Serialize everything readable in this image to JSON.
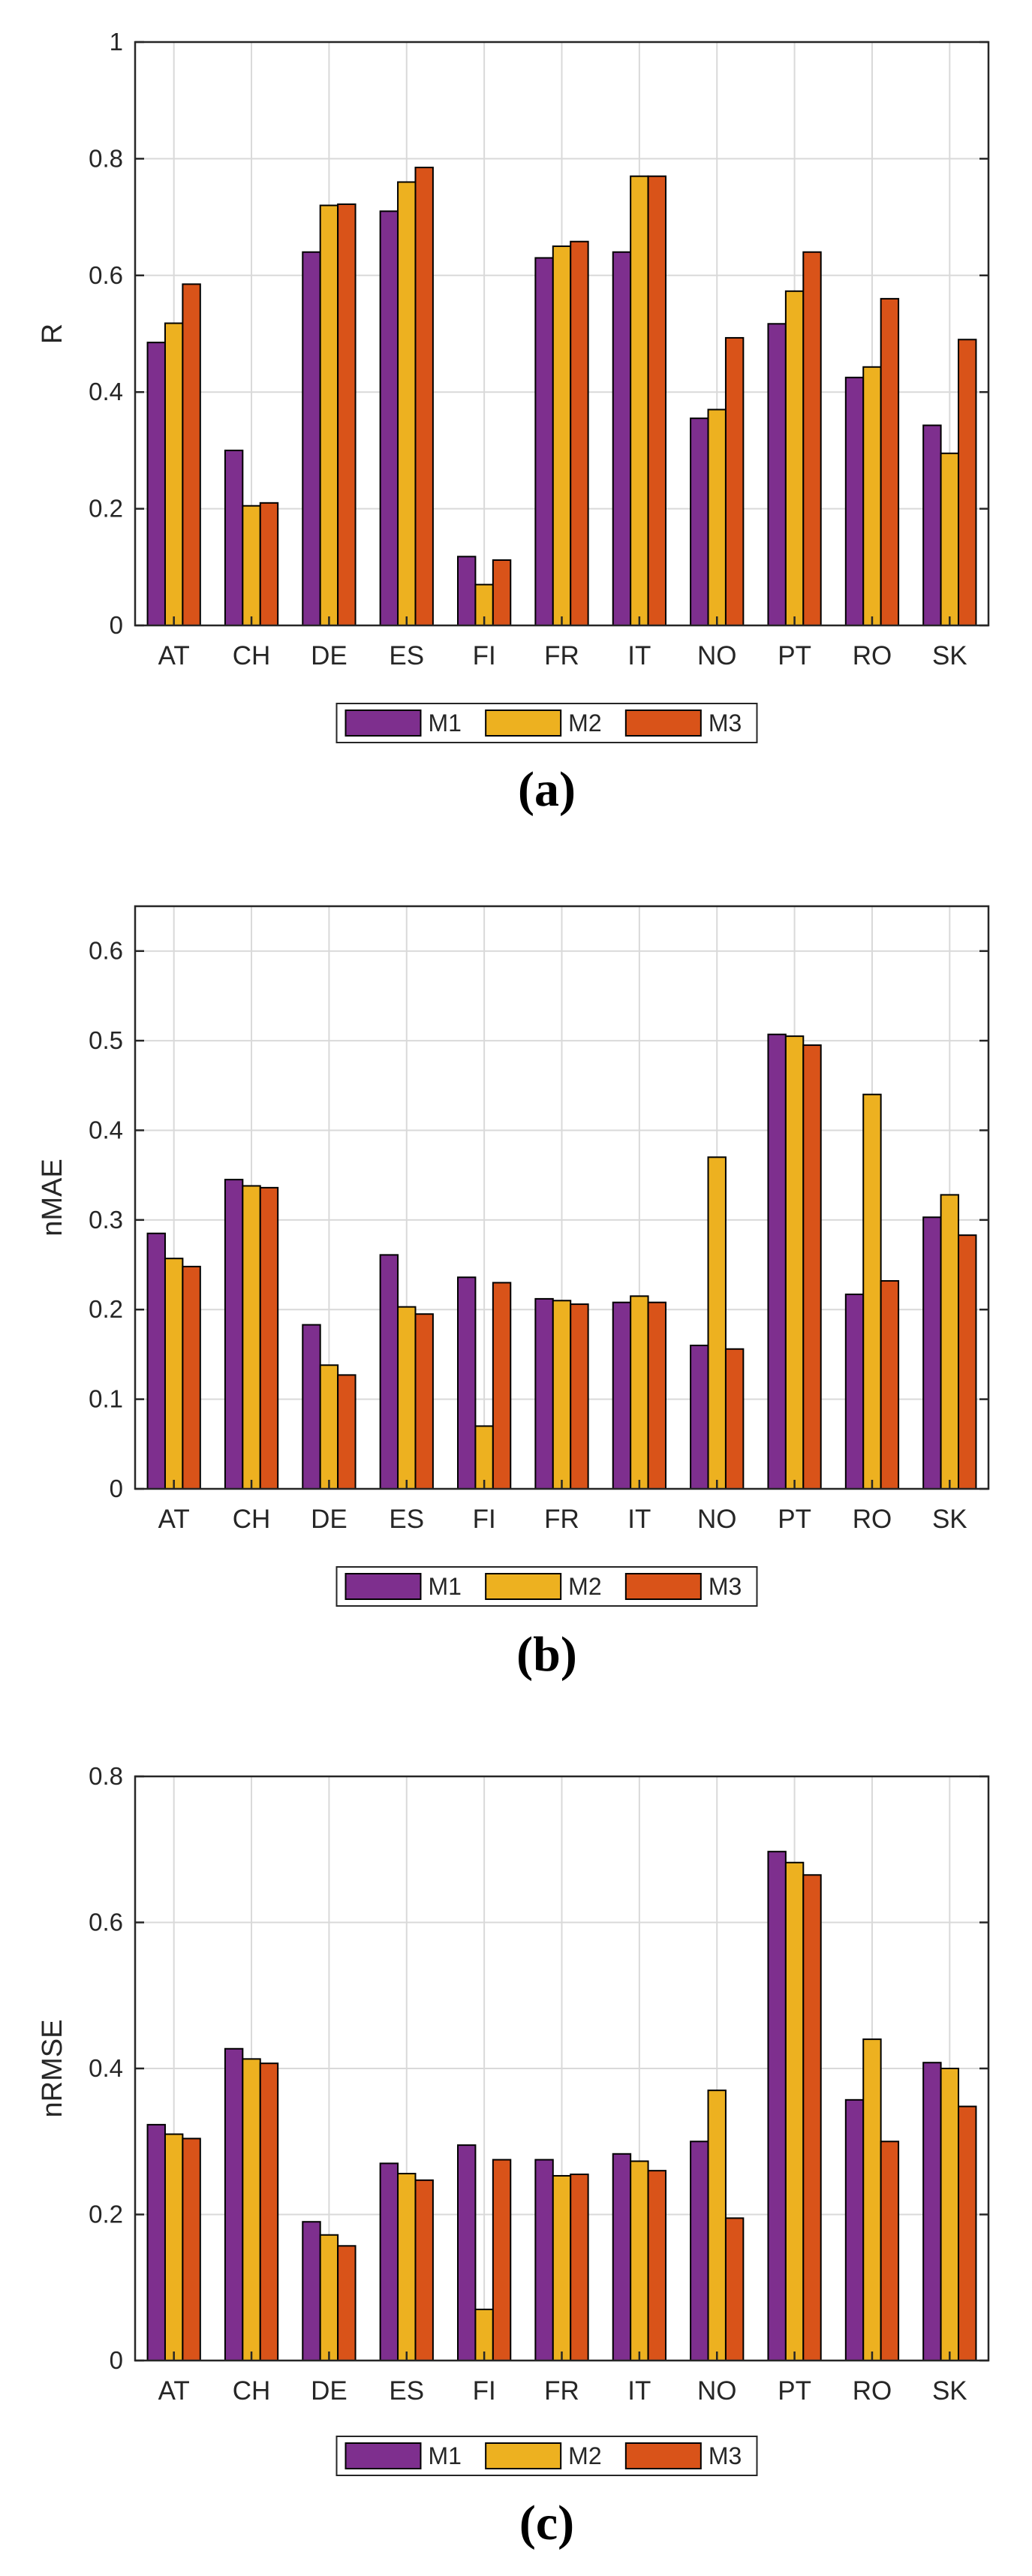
{
  "colors": {
    "M1": "#7e2f8e",
    "M2": "#edb120",
    "M3": "#d95319",
    "axis": "#262626",
    "grid": "#d9d9d9",
    "label": "#262626"
  },
  "chart_data": [
    {
      "type": "bar",
      "panel_label": "(a)",
      "title": "",
      "xlabel": "",
      "ylabel": "R",
      "ylim": [
        0,
        1
      ],
      "yticks": [
        0,
        0.2,
        0.4,
        0.6,
        0.8,
        1
      ],
      "ytick_labels": [
        "0",
        "0.2",
        "0.4",
        "0.6",
        "0.8",
        "1"
      ],
      "grid": true,
      "legend": "bottom-center",
      "categories": [
        "AT",
        "CH",
        "DE",
        "ES",
        "FI",
        "FR",
        "IT",
        "NO",
        "PT",
        "RO",
        "SK"
      ],
      "series": [
        {
          "name": "M1",
          "values": [
            0.485,
            0.3,
            0.64,
            0.71,
            0.118,
            0.63,
            0.64,
            0.355,
            0.517,
            0.425,
            0.343
          ]
        },
        {
          "name": "M2",
          "values": [
            0.518,
            0.205,
            0.72,
            0.76,
            0.07,
            0.65,
            0.77,
            0.37,
            0.573,
            0.443,
            0.295
          ]
        },
        {
          "name": "M3",
          "values": [
            0.585,
            0.21,
            0.722,
            0.785,
            0.112,
            0.658,
            0.77,
            0.493,
            0.64,
            0.56,
            0.49
          ]
        }
      ]
    },
    {
      "type": "bar",
      "panel_label": "(b)",
      "title": "",
      "xlabel": "",
      "ylabel": "nMAE",
      "ylim": [
        0,
        0.65
      ],
      "yticks": [
        0,
        0.1,
        0.2,
        0.3,
        0.4,
        0.5,
        0.6
      ],
      "ytick_labels": [
        "0",
        "0.1",
        "0.2",
        "0.3",
        "0.4",
        "0.5",
        "0.6"
      ],
      "grid": true,
      "legend": "bottom-center",
      "categories": [
        "AT",
        "CH",
        "DE",
        "ES",
        "FI",
        "FR",
        "IT",
        "NO",
        "PT",
        "RO",
        "SK"
      ],
      "series": [
        {
          "name": "M1",
          "values": [
            0.285,
            0.345,
            0.183,
            0.261,
            0.236,
            0.212,
            0.208,
            0.16,
            0.507,
            0.217,
            0.303
          ]
        },
        {
          "name": "M2",
          "values": [
            0.257,
            0.338,
            0.138,
            0.203,
            0.07,
            0.21,
            0.215,
            0.37,
            0.505,
            0.44,
            0.328
          ]
        },
        {
          "name": "M3",
          "values": [
            0.248,
            0.336,
            0.127,
            0.195,
            0.23,
            0.206,
            0.208,
            0.156,
            0.495,
            0.232,
            0.283
          ]
        }
      ]
    },
    {
      "type": "bar",
      "panel_label": "(c)",
      "title": "",
      "xlabel": "",
      "ylabel": "nRMSE",
      "ylim": [
        0,
        0.8
      ],
      "yticks": [
        0,
        0.2,
        0.4,
        0.6,
        0.8
      ],
      "ytick_labels": [
        "0",
        "0.2",
        "0.4",
        "0.6",
        "0.8"
      ],
      "grid": true,
      "legend": "bottom-center",
      "categories": [
        "AT",
        "CH",
        "DE",
        "ES",
        "FI",
        "FR",
        "IT",
        "NO",
        "PT",
        "RO",
        "SK"
      ],
      "series": [
        {
          "name": "M1",
          "values": [
            0.323,
            0.427,
            0.19,
            0.27,
            0.295,
            0.275,
            0.283,
            0.3,
            0.697,
            0.357,
            0.408
          ]
        },
        {
          "name": "M2",
          "values": [
            0.31,
            0.413,
            0.172,
            0.256,
            0.07,
            0.253,
            0.273,
            0.37,
            0.682,
            0.44,
            0.4
          ]
        },
        {
          "name": "M3",
          "values": [
            0.304,
            0.407,
            0.157,
            0.247,
            0.275,
            0.255,
            0.26,
            0.195,
            0.665,
            0.3,
            0.348
          ]
        }
      ]
    }
  ]
}
